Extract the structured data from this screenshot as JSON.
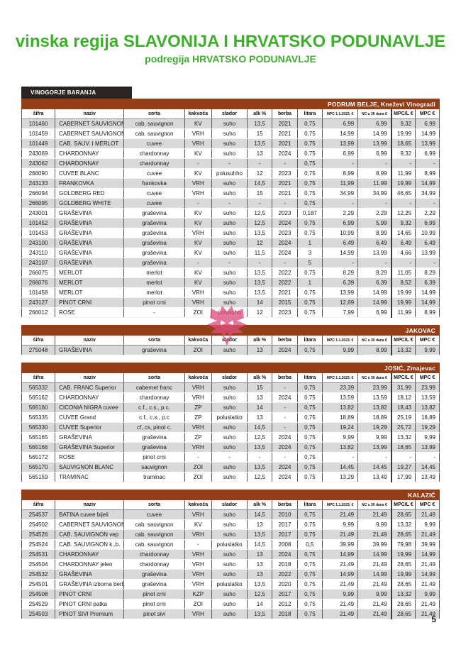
{
  "header": {
    "title": "vinska regija SLAVONIJA I HRVATSKO PODUNAVLJE",
    "subtitle": "podregija HRVATSKO PODUNAVLJE",
    "vinogorje_label": "VINOGORJE BARANJA"
  },
  "columns": [
    "šifra",
    "naziv",
    "sorta",
    "kakvoća",
    "slador",
    "alk %",
    "berba",
    "litara",
    "MPC 1.1.2023. €",
    "NC u 30 dana €",
    "MPC/L €",
    "MPC €"
  ],
  "tables": [
    {
      "producer": "PODRUM BELJE, Kneževi Vinogradi",
      "rows": [
        [
          "101460",
          "CABERNET SAUVIGNON",
          "cab. sauvignon",
          "KV",
          "suho",
          "13,5",
          "2021",
          "0,75",
          "6,99",
          "6,99",
          "9,32",
          "6,99"
        ],
        [
          "101459",
          "CABERNET SAUVIGNON",
          "cab. sauvignon",
          "VRH",
          "suho",
          "15",
          "2021",
          "0,75",
          "14,99",
          "14,99",
          "19,99",
          "14,99"
        ],
        [
          "101449",
          "CAB. SAUV. I MERLOT",
          "cuvee",
          "VRH",
          "suho",
          "13,5",
          "2021",
          "0,75",
          "13,99",
          "13,99",
          "18,65",
          "13,99"
        ],
        [
          "243069",
          "CHARDONNAY",
          "chardonnay",
          "KV",
          "suho",
          "13",
          "2024",
          "0,75",
          "6,99",
          "6,99",
          "9,32",
          "6,99"
        ],
        [
          "243062",
          "CHARDONNAY",
          "chardonnay",
          "-",
          "-",
          "-",
          "-",
          "0,75",
          "-",
          "-",
          "-",
          "-"
        ],
        [
          "266090",
          "CUVEE BLANC",
          "cuvee",
          "KV",
          "polusuhho",
          "12",
          "2023",
          "0,75",
          "8,99",
          "8,99",
          "11,99",
          "8,99"
        ],
        [
          "243133",
          "FRANKOVKA",
          "frankovka",
          "VRH",
          "suho",
          "14,5",
          "2021",
          "0,75",
          "11,99",
          "11,99",
          "19,99",
          "14,99"
        ],
        [
          "266094",
          "GOLDBERG RED",
          "cuvee",
          "VRH",
          "suho",
          "15",
          "2021",
          "0,75",
          "34,99",
          "34,99",
          "46,65",
          "34,99"
        ],
        [
          "266095",
          "GOLDBERG WHITE",
          "cuvee",
          "-",
          "-",
          "-",
          "-",
          "0,75",
          "-",
          "-",
          "-",
          "-"
        ],
        [
          "243001",
          "GRAŠEVINA",
          "graševina",
          "KV",
          "suho",
          "12,5",
          "2023",
          "0,187",
          "2,29",
          "2,29",
          "12,25",
          "2,29"
        ],
        [
          "101452",
          "GRAŠEVINA",
          "graševina",
          "KV",
          "suho",
          "12,5",
          "2024",
          "0,75",
          "6,99",
          "5,99",
          "9,32",
          "6,99"
        ],
        [
          "101453",
          "GRAŠEVINA",
          "graševina",
          "VRH",
          "suho",
          "13,5",
          "2023",
          "0,75",
          "10,99",
          "8,99",
          "14,65",
          "10,99"
        ],
        [
          "243100",
          "GRAŠEVINA",
          "graševina",
          "KV",
          "suho",
          "12",
          "2024",
          "1",
          "6,49",
          "6,49",
          "6,49",
          "6,49"
        ],
        [
          "243110",
          "GRAŠEVINA",
          "graševina",
          "KV",
          "suho",
          "11,5",
          "2024",
          "3",
          "14,99",
          "13,99",
          "4,66",
          "13,99"
        ],
        [
          "243107",
          "GRAŠEVINA",
          "graševina",
          "-",
          "-",
          "-",
          "-",
          "5",
          "-",
          "-",
          "-",
          "-"
        ],
        [
          "266075",
          "MERLOT",
          "merlot",
          "KV",
          "suho",
          "13,5",
          "2022",
          "0,75",
          "8,29",
          "8,29",
          "11,05",
          "8,29"
        ],
        [
          "266076",
          "MERLOT",
          "merlot",
          "KV",
          "suho",
          "13,5",
          "2022",
          "1",
          "6,39",
          "6,39",
          "8,52",
          "6,39"
        ],
        [
          "101458",
          "MERLOT",
          "merlot",
          "VRH",
          "suho",
          "13,5",
          "2021",
          "0,75",
          "13,99",
          "14,99",
          "19,99",
          "14,99"
        ],
        [
          "243127",
          "PINOT CRNI",
          "pinot crni",
          "VRH",
          "suho",
          "14",
          "2015",
          "0,75",
          "12,69",
          "14,99",
          "19,99",
          "14,99"
        ],
        [
          "266012",
          "ROSE",
          "-",
          "ZOI",
          "polusuho",
          "12",
          "2023",
          "0,75",
          "7,99",
          "6,99",
          "11,99",
          "8,99"
        ]
      ]
    },
    {
      "producer": "JAKOVAC",
      "rows": [
        [
          "275048",
          "GRAŠEVINA",
          "graševina",
          "ZOI",
          "suho",
          "13",
          "2024",
          "0,75",
          "9,99",
          "8,99",
          "13,32",
          "9,99"
        ]
      ]
    },
    {
      "producer": "JOSIĆ, Zmajevac",
      "rows": [
        [
          "565332",
          "CAB. FRANC Superior",
          "cabernet franc",
          "VRH",
          "suho",
          "15",
          "-",
          "0,75",
          "23,39",
          "23,99",
          "31,99",
          "23,99"
        ],
        [
          "565162",
          "CHARDONNAY",
          "chardonnay",
          "VRH",
          "suho",
          "13",
          "2024",
          "0,75",
          "13,59",
          "13,59",
          "18,12",
          "13,59"
        ],
        [
          "565160",
          "CICONIA NIGRA cuvee",
          "c.f., c.s., p.c.",
          "ZP",
          "suho",
          "14",
          "-",
          "0,75",
          "13,82",
          "13,82",
          "18,43",
          "13,82"
        ],
        [
          "565335",
          "CUVEE Grand",
          "c.f., c.s., p.c",
          "ZP",
          "poluslatko",
          "13",
          "-",
          "0,75",
          "18,89",
          "18,89",
          "25,19",
          "18,89"
        ],
        [
          "565330",
          "CUVEE Superior",
          "cf, cs, pinot c.",
          "VRH",
          "suho",
          "14,5",
          "-",
          "0,75",
          "19,24",
          "19,29",
          "25,72",
          "19,29"
        ],
        [
          "565165",
          "GRAŠEVINA",
          "graševina",
          "ZP",
          "suho",
          "12,5",
          "2024",
          "0,75",
          "9,99",
          "9,99",
          "13,32",
          "9,99"
        ],
        [
          "565166",
          "GRAŠEVINA Superior",
          "graševina",
          "VRH",
          "suho",
          "13,5",
          "2024",
          "0,75",
          "13,82",
          "13,99",
          "18,65",
          "13,99"
        ],
        [
          "565172",
          "ROSE",
          "pinot crni",
          "-",
          "-",
          "-",
          "-",
          "0,75",
          "-",
          "-",
          "-",
          "-"
        ],
        [
          "565170",
          "SAUVIGNON BLANC",
          "sauvignon",
          "ZOI",
          "suho",
          "13,5",
          "2024",
          "0,75",
          "14,45",
          "14,45",
          "19,27",
          "14,45"
        ],
        [
          "565159",
          "TRAMINAC",
          "traminac",
          "ZOI",
          "suho",
          "12,5",
          "2024",
          "0,75",
          "13,29",
          "13,49",
          "17,99",
          "13,49"
        ]
      ]
    },
    {
      "producer": "KALAZIĆ",
      "rows": [
        [
          "254537",
          "BATINA cuvee bijeli",
          "cuvee",
          "VRH",
          "suho",
          "14,5",
          "2010",
          "0,75",
          "21,49",
          "21,49",
          "28,65",
          "21,49"
        ],
        [
          "254502",
          "CABERNET SAUVIGNON",
          "cab. sauvignon",
          "KV",
          "suho",
          "13",
          "2017",
          "0,75",
          "9,99",
          "9,99",
          "13,32",
          "9,99"
        ],
        [
          "254526",
          "CAB. SAUVIGNON vep",
          "cab. sauvignon",
          "VRH",
          "suho",
          "13,5",
          "2017",
          "0,75",
          "21,49",
          "21,49",
          "28,65",
          "21,49"
        ],
        [
          "254524",
          "CAB. SAUVIGNON k..b.",
          "cab. sauvignon",
          "-",
          "poluslatko",
          "14,5",
          "2008",
          "0,5",
          "39,99",
          "39,99",
          "79,98",
          "39,99"
        ],
        [
          "254531",
          "CHARDONNAY",
          "chardonnay",
          "VRH",
          "suho",
          "13",
          "2024",
          "0,75",
          "14,99",
          "14,99",
          "19,99",
          "14,99"
        ],
        [
          "254504",
          "CHARDONNAY jelen",
          "chardonnay",
          "VRH",
          "suho",
          "13",
          "2018",
          "0,75",
          "21,49",
          "21,49",
          "28,65",
          "21,49"
        ],
        [
          "254532",
          "GRAŠEVINA",
          "graševina",
          "VRH",
          "suho",
          "13",
          "2022",
          "0,75",
          "14,99",
          "14,99",
          "19,99",
          "14,99"
        ],
        [
          "254501",
          "GRAŠEVINA izborna berba",
          "graševina",
          "VRH",
          "poluslatko",
          "13,5",
          "2020",
          "0,75",
          "21,49",
          "21,49",
          "28,65",
          "21,49"
        ],
        [
          "254508",
          "PINOT CRNI",
          "pinot crni",
          "KZP",
          "suho",
          "12,5",
          "2017",
          "0,75",
          "9,99",
          "9,99",
          "13,32",
          "9,99"
        ],
        [
          "254529",
          "PINOT CRNI patka",
          "pinot crni",
          "ZOI",
          "suho",
          "14",
          "2012",
          "0,75",
          "21,49",
          "21,49",
          "28,65",
          "21,49"
        ],
        [
          "254503",
          "PINOT SIVI Premium",
          "pinot sivi",
          "VRH",
          "suho",
          "13,5",
          "2018",
          "0,75",
          "21,49",
          "21,49",
          "28,65",
          "21,49"
        ]
      ]
    }
  ],
  "footer": {
    "page_number": "5"
  },
  "colors": {
    "title_green": "#3daf2c",
    "section_brown": "#943d17",
    "vinogorje_dark": "#2b2422",
    "row_gray": "#d9d9d9",
    "watermark_pink": "#de4f7e"
  },
  "watermark": {
    "name": "fox-head-watermark"
  }
}
